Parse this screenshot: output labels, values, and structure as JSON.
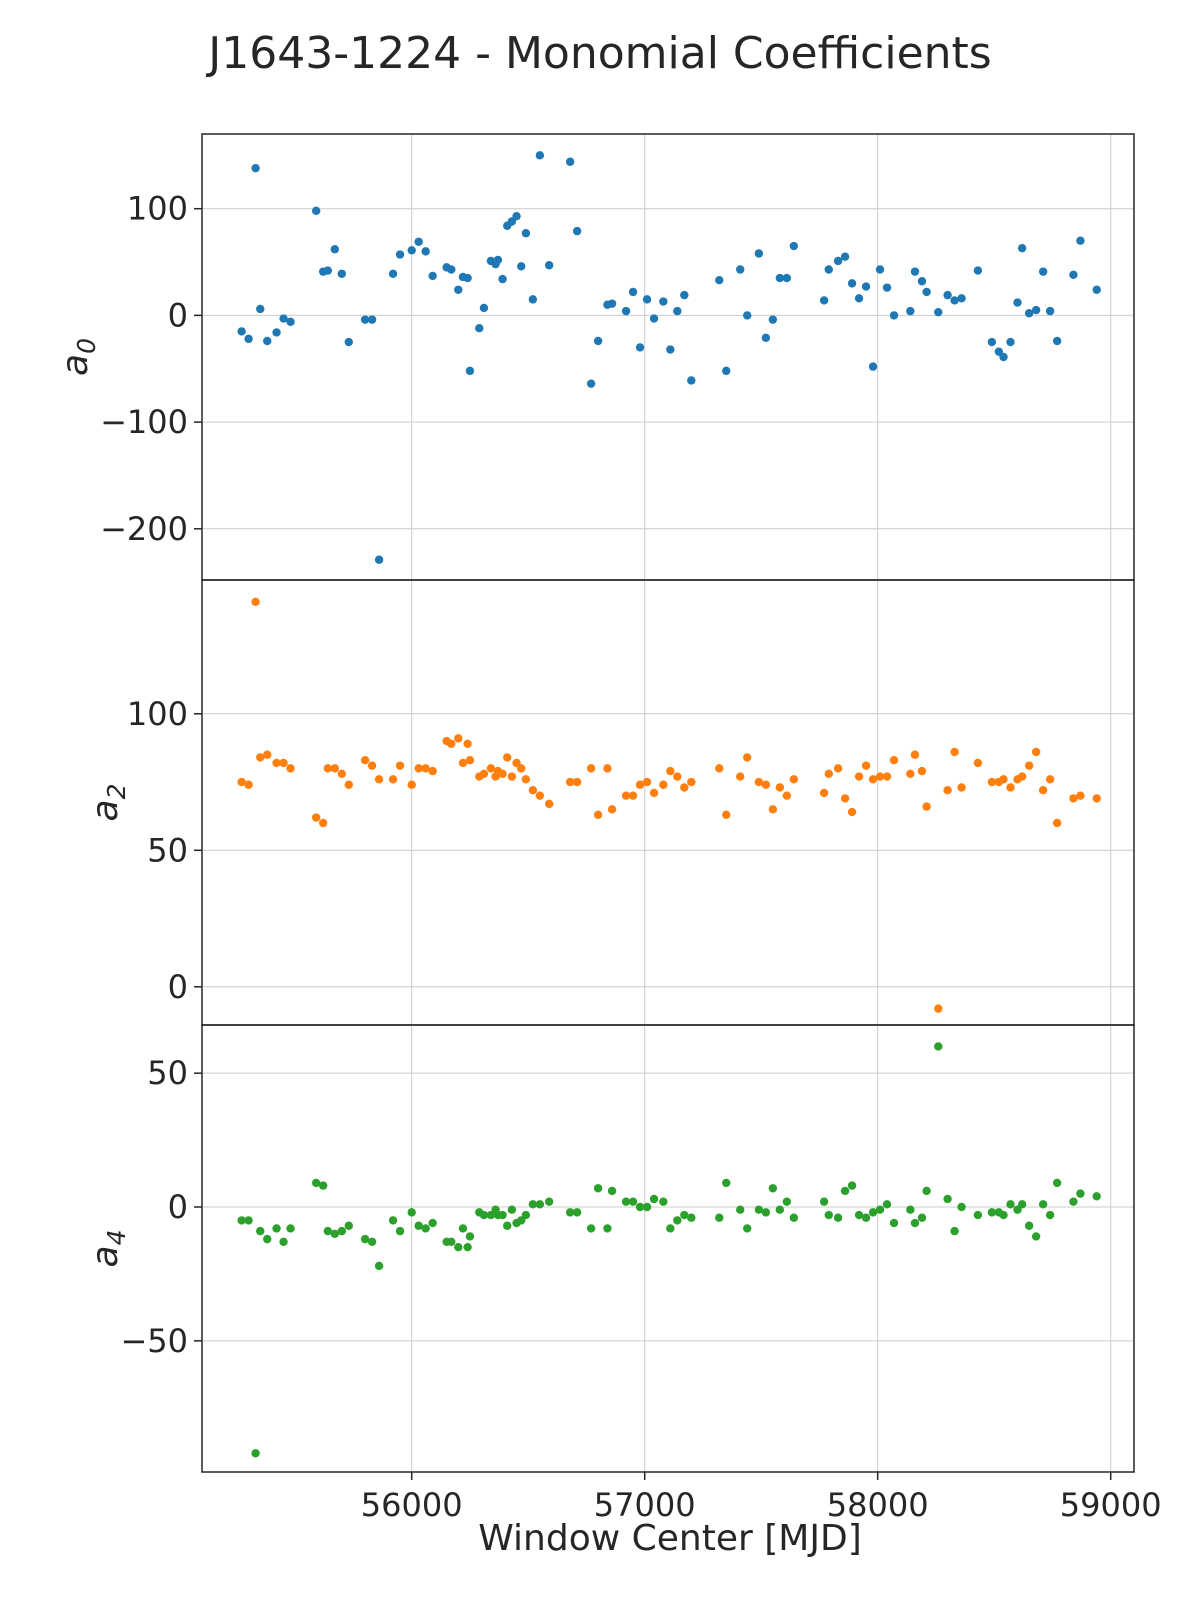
{
  "figure": {
    "title": "J1643-1224 - Monomial Coefficients",
    "xlabel": "Window Center [MJD]"
  },
  "chart_data": {
    "type": "scatter",
    "title": "J1643-1224 - Monomial Coefficients",
    "xlabel": "Window Center [MJD]",
    "xlim": [
      55100,
      59100
    ],
    "xticks": [
      56000,
      57000,
      58000,
      59000
    ],
    "xtick_labels": [
      "56000",
      "57000",
      "58000",
      "59000"
    ],
    "grid": true,
    "panels": [
      {
        "ylabel_main": "a",
        "ylabel_sub": "0",
        "color": "#1f77b4",
        "ylim": [
          -248,
          170
        ],
        "yticks": [
          100,
          0,
          -100,
          -200
        ],
        "ytick_labels": [
          "100",
          "0",
          "−100",
          "−200"
        ],
        "points": [
          [
            55270,
            -15
          ],
          [
            55300,
            -22
          ],
          [
            55330,
            138
          ],
          [
            55350,
            6
          ],
          [
            55380,
            -24
          ],
          [
            55420,
            -16
          ],
          [
            55450,
            -3
          ],
          [
            55480,
            -6
          ],
          [
            55590,
            98
          ],
          [
            55620,
            41
          ],
          [
            55640,
            42
          ],
          [
            55670,
            62
          ],
          [
            55700,
            39
          ],
          [
            55730,
            -25
          ],
          [
            55800,
            -4
          ],
          [
            55830,
            -4
          ],
          [
            55860,
            -229
          ],
          [
            55920,
            39
          ],
          [
            55950,
            57
          ],
          [
            56000,
            61
          ],
          [
            56030,
            69
          ],
          [
            56060,
            60
          ],
          [
            56090,
            37
          ],
          [
            56150,
            45
          ],
          [
            56170,
            43
          ],
          [
            56200,
            24
          ],
          [
            56220,
            36
          ],
          [
            56240,
            35
          ],
          [
            56250,
            -52
          ],
          [
            56290,
            -12
          ],
          [
            56310,
            7
          ],
          [
            56340,
            51
          ],
          [
            56360,
            48
          ],
          [
            56370,
            52
          ],
          [
            56390,
            34
          ],
          [
            56410,
            84
          ],
          [
            56430,
            88
          ],
          [
            56450,
            93
          ],
          [
            56470,
            46
          ],
          [
            56490,
            77
          ],
          [
            56520,
            15
          ],
          [
            56550,
            150
          ],
          [
            56590,
            47
          ],
          [
            56680,
            144
          ],
          [
            56710,
            79
          ],
          [
            56770,
            -64
          ],
          [
            56800,
            -24
          ],
          [
            56840,
            10
          ],
          [
            56860,
            11
          ],
          [
            56920,
            4
          ],
          [
            56950,
            22
          ],
          [
            56980,
            -30
          ],
          [
            57010,
            15
          ],
          [
            57040,
            -3
          ],
          [
            57080,
            13
          ],
          [
            57110,
            -32
          ],
          [
            57140,
            4
          ],
          [
            57170,
            19
          ],
          [
            57200,
            -61
          ],
          [
            57320,
            33
          ],
          [
            57350,
            -52
          ],
          [
            57410,
            43
          ],
          [
            57440,
            0
          ],
          [
            57490,
            58
          ],
          [
            57520,
            -21
          ],
          [
            57550,
            -4
          ],
          [
            57580,
            35
          ],
          [
            57610,
            35
          ],
          [
            57640,
            65
          ],
          [
            57770,
            14
          ],
          [
            57790,
            43
          ],
          [
            57830,
            51
          ],
          [
            57860,
            55
          ],
          [
            57890,
            30
          ],
          [
            57920,
            16
          ],
          [
            57950,
            27
          ],
          [
            57980,
            -48
          ],
          [
            58010,
            43
          ],
          [
            58040,
            26
          ],
          [
            58070,
            0
          ],
          [
            58140,
            4
          ],
          [
            58160,
            41
          ],
          [
            58190,
            32
          ],
          [
            58210,
            22
          ],
          [
            58260,
            3
          ],
          [
            58300,
            19
          ],
          [
            58330,
            14
          ],
          [
            58360,
            16
          ],
          [
            58430,
            42
          ],
          [
            58490,
            -25
          ],
          [
            58520,
            -34
          ],
          [
            58540,
            -39
          ],
          [
            58570,
            -25
          ],
          [
            58600,
            12
          ],
          [
            58620,
            63
          ],
          [
            58650,
            2
          ],
          [
            58680,
            5
          ],
          [
            58710,
            41
          ],
          [
            58740,
            4
          ],
          [
            58770,
            -24
          ],
          [
            58840,
            38
          ],
          [
            58870,
            70
          ],
          [
            58940,
            24
          ]
        ]
      },
      {
        "ylabel_main": "a",
        "ylabel_sub": "2",
        "color": "#ff7f0e",
        "ylim": [
          -14,
          149
        ],
        "yticks": [
          100,
          50,
          0
        ],
        "ytick_labels": [
          "100",
          "50",
          "0"
        ],
        "points": [
          [
            55270,
            75
          ],
          [
            55300,
            74
          ],
          [
            55330,
            141
          ],
          [
            55350,
            84
          ],
          [
            55380,
            85
          ],
          [
            55420,
            82
          ],
          [
            55450,
            82
          ],
          [
            55480,
            80
          ],
          [
            55590,
            62
          ],
          [
            55620,
            60
          ],
          [
            55640,
            80
          ],
          [
            55670,
            80
          ],
          [
            55700,
            78
          ],
          [
            55730,
            74
          ],
          [
            55800,
            83
          ],
          [
            55830,
            81
          ],
          [
            55860,
            76
          ],
          [
            55920,
            76
          ],
          [
            55950,
            81
          ],
          [
            56000,
            74
          ],
          [
            56030,
            80
          ],
          [
            56060,
            80
          ],
          [
            56090,
            79
          ],
          [
            56150,
            90
          ],
          [
            56170,
            89
          ],
          [
            56200,
            91
          ],
          [
            56220,
            82
          ],
          [
            56240,
            89
          ],
          [
            56250,
            83
          ],
          [
            56290,
            77
          ],
          [
            56310,
            78
          ],
          [
            56340,
            80
          ],
          [
            56360,
            77
          ],
          [
            56370,
            79
          ],
          [
            56390,
            78
          ],
          [
            56410,
            84
          ],
          [
            56430,
            77
          ],
          [
            56450,
            82
          ],
          [
            56470,
            80
          ],
          [
            56490,
            76
          ],
          [
            56520,
            72
          ],
          [
            56550,
            70
          ],
          [
            56590,
            67
          ],
          [
            56680,
            75
          ],
          [
            56710,
            75
          ],
          [
            56770,
            80
          ],
          [
            56800,
            63
          ],
          [
            56840,
            80
          ],
          [
            56860,
            65
          ],
          [
            56920,
            70
          ],
          [
            56950,
            70
          ],
          [
            56980,
            74
          ],
          [
            57010,
            75
          ],
          [
            57040,
            71
          ],
          [
            57080,
            74
          ],
          [
            57110,
            79
          ],
          [
            57140,
            77
          ],
          [
            57170,
            73
          ],
          [
            57200,
            75
          ],
          [
            57320,
            80
          ],
          [
            57350,
            63
          ],
          [
            57410,
            77
          ],
          [
            57440,
            84
          ],
          [
            57490,
            75
          ],
          [
            57520,
            74
          ],
          [
            57550,
            65
          ],
          [
            57580,
            73
          ],
          [
            57610,
            70
          ],
          [
            57640,
            76
          ],
          [
            57770,
            71
          ],
          [
            57790,
            78
          ],
          [
            57830,
            80
          ],
          [
            57860,
            69
          ],
          [
            57890,
            64
          ],
          [
            57920,
            77
          ],
          [
            57950,
            81
          ],
          [
            57980,
            76
          ],
          [
            58010,
            77
          ],
          [
            58040,
            77
          ],
          [
            58070,
            83
          ],
          [
            58140,
            78
          ],
          [
            58160,
            85
          ],
          [
            58190,
            79
          ],
          [
            58210,
            66
          ],
          [
            58260,
            -8
          ],
          [
            58300,
            72
          ],
          [
            58330,
            86
          ],
          [
            58360,
            73
          ],
          [
            58430,
            82
          ],
          [
            58490,
            75
          ],
          [
            58520,
            75
          ],
          [
            58540,
            76
          ],
          [
            58570,
            73
          ],
          [
            58600,
            76
          ],
          [
            58620,
            77
          ],
          [
            58650,
            81
          ],
          [
            58680,
            86
          ],
          [
            58710,
            72
          ],
          [
            58740,
            76
          ],
          [
            58770,
            60
          ],
          [
            58840,
            69
          ],
          [
            58870,
            70
          ],
          [
            58940,
            69
          ]
        ]
      },
      {
        "ylabel_main": "a",
        "ylabel_sub": "4",
        "color": "#2ca02c",
        "ylim": [
          -99,
          68
        ],
        "yticks": [
          50,
          0,
          -50
        ],
        "ytick_labels": [
          "50",
          "0",
          "−50"
        ],
        "points": [
          [
            55270,
            -5
          ],
          [
            55300,
            -5
          ],
          [
            55330,
            -92
          ],
          [
            55350,
            -9
          ],
          [
            55380,
            -12
          ],
          [
            55420,
            -8
          ],
          [
            55450,
            -13
          ],
          [
            55480,
            -8
          ],
          [
            55590,
            9
          ],
          [
            55620,
            8
          ],
          [
            55640,
            -9
          ],
          [
            55670,
            -10
          ],
          [
            55700,
            -9
          ],
          [
            55730,
            -7
          ],
          [
            55800,
            -12
          ],
          [
            55830,
            -13
          ],
          [
            55860,
            -22
          ],
          [
            55920,
            -5
          ],
          [
            55950,
            -9
          ],
          [
            56000,
            -2
          ],
          [
            56030,
            -7
          ],
          [
            56060,
            -8
          ],
          [
            56090,
            -6
          ],
          [
            56150,
            -13
          ],
          [
            56170,
            -13
          ],
          [
            56200,
            -15
          ],
          [
            56220,
            -8
          ],
          [
            56240,
            -15
          ],
          [
            56250,
            -11
          ],
          [
            56290,
            -2
          ],
          [
            56310,
            -3
          ],
          [
            56340,
            -3
          ],
          [
            56360,
            -1
          ],
          [
            56370,
            -3
          ],
          [
            56390,
            -3
          ],
          [
            56410,
            -7
          ],
          [
            56430,
            -1
          ],
          [
            56450,
            -6
          ],
          [
            56470,
            -5
          ],
          [
            56490,
            -3
          ],
          [
            56520,
            1
          ],
          [
            56550,
            1
          ],
          [
            56590,
            2
          ],
          [
            56680,
            -2
          ],
          [
            56710,
            -2
          ],
          [
            56770,
            -8
          ],
          [
            56800,
            7
          ],
          [
            56840,
            -8
          ],
          [
            56860,
            6
          ],
          [
            56920,
            2
          ],
          [
            56950,
            2
          ],
          [
            56980,
            0
          ],
          [
            57010,
            0
          ],
          [
            57040,
            3
          ],
          [
            57080,
            2
          ],
          [
            57110,
            -8
          ],
          [
            57140,
            -5
          ],
          [
            57170,
            -3
          ],
          [
            57200,
            -4
          ],
          [
            57320,
            -4
          ],
          [
            57350,
            9
          ],
          [
            57410,
            -1
          ],
          [
            57440,
            -8
          ],
          [
            57490,
            -1
          ],
          [
            57520,
            -2
          ],
          [
            57550,
            7
          ],
          [
            57580,
            -1
          ],
          [
            57610,
            2
          ],
          [
            57640,
            -4
          ],
          [
            57770,
            2
          ],
          [
            57790,
            -3
          ],
          [
            57830,
            -4
          ],
          [
            57860,
            6
          ],
          [
            57890,
            8
          ],
          [
            57920,
            -3
          ],
          [
            57950,
            -4
          ],
          [
            57980,
            -2
          ],
          [
            58010,
            -1
          ],
          [
            58040,
            1
          ],
          [
            58070,
            -6
          ],
          [
            58140,
            -1
          ],
          [
            58160,
            -6
          ],
          [
            58190,
            -4
          ],
          [
            58210,
            6
          ],
          [
            58260,
            60
          ],
          [
            58300,
            3
          ],
          [
            58330,
            -9
          ],
          [
            58360,
            0
          ],
          [
            58430,
            -3
          ],
          [
            58490,
            -2
          ],
          [
            58520,
            -2
          ],
          [
            58540,
            -3
          ],
          [
            58570,
            1
          ],
          [
            58600,
            -1
          ],
          [
            58620,
            1
          ],
          [
            58650,
            -7
          ],
          [
            58680,
            -11
          ],
          [
            58710,
            1
          ],
          [
            58740,
            -3
          ],
          [
            58770,
            9
          ],
          [
            58840,
            2
          ],
          [
            58870,
            5
          ],
          [
            58940,
            4
          ]
        ]
      }
    ]
  }
}
